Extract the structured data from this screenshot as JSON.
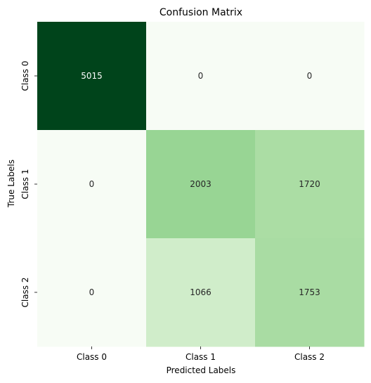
{
  "chart_data": {
    "type": "heatmap",
    "title": "Confusion Matrix",
    "xlabel": "Predicted Labels",
    "ylabel": "True Labels",
    "x_categories": [
      "Class 0",
      "Class 1",
      "Class 2"
    ],
    "y_categories": [
      "Class 0",
      "Class 1",
      "Class 2"
    ],
    "values": [
      [
        5015,
        0,
        0
      ],
      [
        0,
        2003,
        1720
      ],
      [
        0,
        1066,
        1753
      ]
    ],
    "colormap": "Greens",
    "colorbar": false,
    "grid": false
  }
}
